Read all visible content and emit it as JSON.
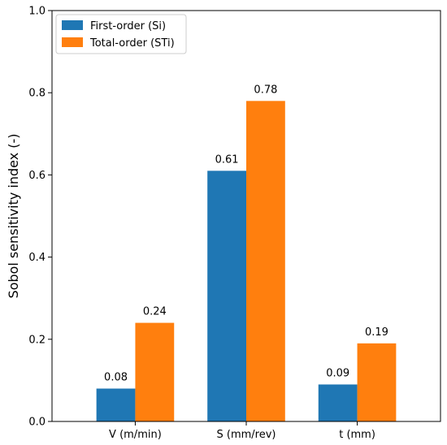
{
  "chart_data": {
    "type": "bar",
    "categories": [
      "V (m/min)",
      "S (mm/rev)",
      "t (mm)"
    ],
    "series": [
      {
        "name": "First-order (Si)",
        "values": [
          0.08,
          0.61,
          0.09
        ],
        "labels": [
          "0.08",
          "0.61",
          "0.09"
        ],
        "color": "#1f77b4"
      },
      {
        "name": "Total-order (STi)",
        "values": [
          0.24,
          0.78,
          0.19
        ],
        "labels": [
          "0.24",
          "0.78",
          "0.19"
        ],
        "color": "#ff7f0e"
      }
    ],
    "title": "",
    "xlabel": "",
    "ylabel": "Sobol sensitivity index (-)",
    "ylim": [
      0,
      1.0
    ],
    "yticks": [
      0.0,
      0.2,
      0.4,
      0.6,
      0.8,
      1.0
    ],
    "ytick_labels": [
      "0.0",
      "0.2",
      "0.4",
      "0.6",
      "0.8",
      "1.0"
    ],
    "grid": false,
    "legend_position": "top-left"
  }
}
